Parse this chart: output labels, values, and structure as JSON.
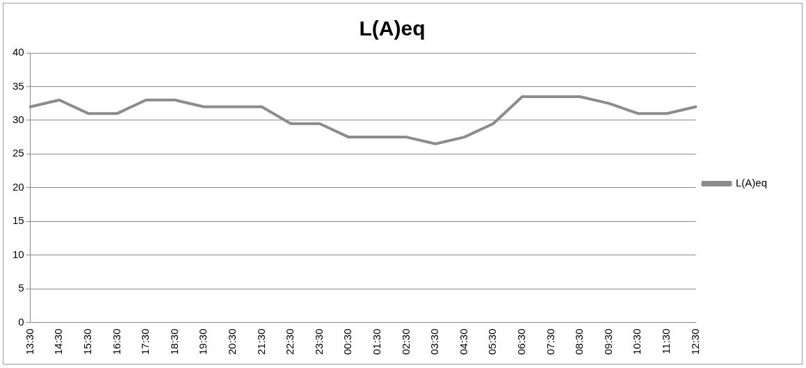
{
  "chart_data": {
    "type": "line",
    "title": "L(A)eq",
    "categories": [
      "13:30",
      "14:30",
      "15:30",
      "16:30",
      "17:30",
      "18:30",
      "19:30",
      "20:30",
      "21:30",
      "22:30",
      "23:30",
      "00:30",
      "01:30",
      "02:30",
      "03:30",
      "04:30",
      "05:30",
      "06:30",
      "07:30",
      "08:30",
      "09:30",
      "10:30",
      "11:30",
      "12:30"
    ],
    "series": [
      {
        "name": "L(A)eq",
        "color": "#8c8c8c",
        "values": [
          32,
          33,
          31,
          31,
          33,
          33,
          32,
          32,
          32,
          29.5,
          29.5,
          27.5,
          27.5,
          27.5,
          26.5,
          27.5,
          29.5,
          33.5,
          33.5,
          33.5,
          32.5,
          31,
          31,
          32
        ]
      }
    ],
    "ylim": [
      0,
      40
    ],
    "yticks": [
      0,
      5,
      10,
      15,
      20,
      25,
      30,
      35,
      40
    ],
    "grid": "y",
    "legend": "right",
    "marker": "none",
    "line_style": "solid"
  }
}
